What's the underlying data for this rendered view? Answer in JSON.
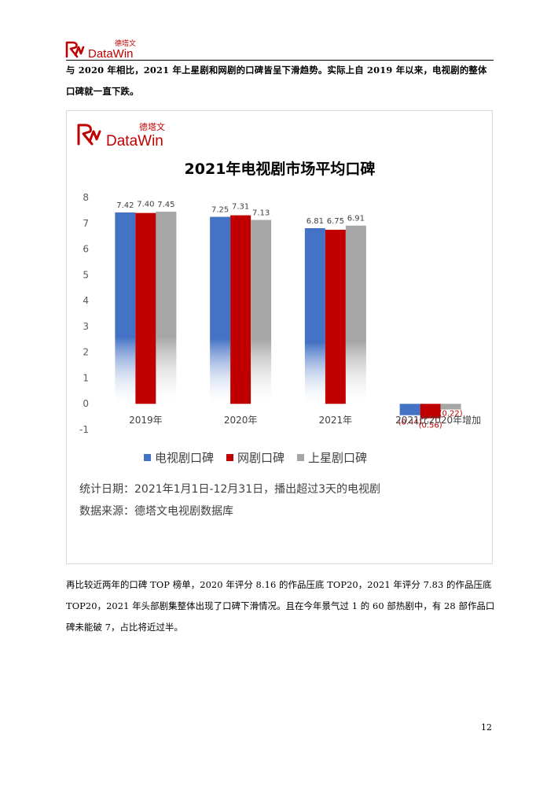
{
  "header": {
    "logo_cn": "德塔文",
    "logo_en": "DataWin"
  },
  "intro_paragraph": "与 2020 年相比，2021 年上星剧和网剧的口碑皆呈下滑趋势。实际上自 2019 年以来，电视剧的整体口碑就一直下跌。",
  "chart_data": {
    "type": "bar",
    "title": "2021年电视剧市场平均口碑",
    "logo_cn": "德塔文",
    "logo_en": "DataWin",
    "categories": [
      "2019年",
      "2020年",
      "2021年",
      "2021比2020年增加"
    ],
    "series": [
      {
        "name": "电视剧口碑",
        "color": "#4472c4",
        "values": [
          7.42,
          7.25,
          6.81,
          -0.44
        ],
        "labels": [
          "7.42",
          "7.25",
          "6.81",
          "(0.44)"
        ]
      },
      {
        "name": "网剧口碑",
        "color": "#c00000",
        "values": [
          7.4,
          7.31,
          6.75,
          -0.56
        ],
        "labels": [
          "7.40",
          "7.31",
          "6.75",
          "(0.56)"
        ]
      },
      {
        "name": "上星剧口碑",
        "color": "#a6a6a6",
        "values": [
          7.45,
          7.13,
          6.91,
          -0.22
        ],
        "labels": [
          "7.45",
          "7.13",
          "6.91",
          "(0.22)"
        ]
      }
    ],
    "ylim": [
      -1,
      8
    ],
    "yticks": [
      "-1",
      "0",
      "1",
      "2",
      "3",
      "4",
      "5",
      "6",
      "7",
      "8"
    ],
    "grid": false,
    "legend_position": "bottom",
    "notes": [
      "统计日期：2021年1月1日-12月31日，播出超过3天的电视剧",
      "数据来源：德塔文电视剧数据库"
    ]
  },
  "closing_paragraph": "再比较近两年的口碑 TOP 榜单，2020 年评分 8.16 的作品压底 TOP20，2021 年评分 7.83 的作品压底 TOP20，2021 年头部剧集整体出现了口碑下滑情况。且在今年景气过 1 的 60 部热剧中，有 28 部作品口碑未能破 7，占比将近过半。",
  "page_number": "12"
}
